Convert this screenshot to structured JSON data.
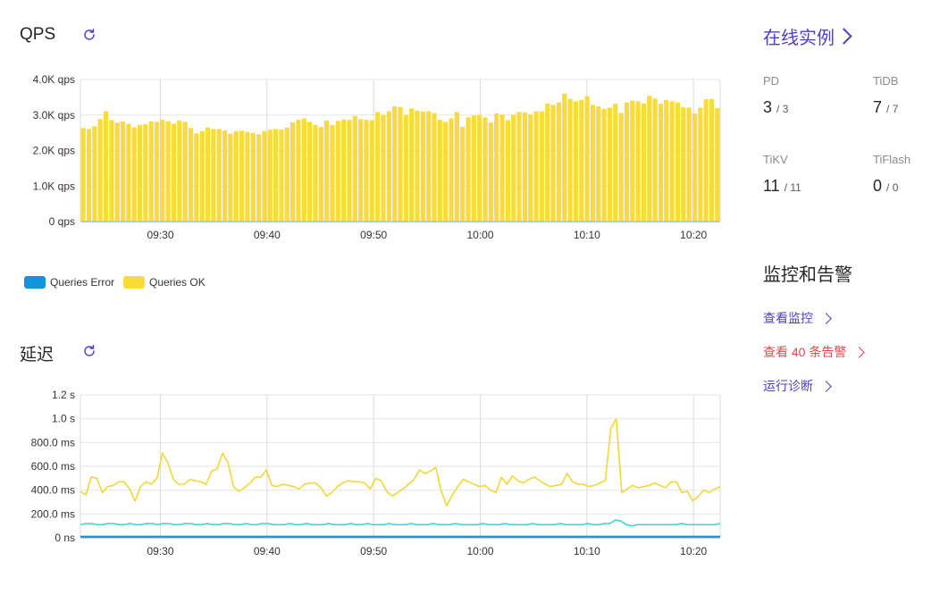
{
  "qps_panel": {
    "title": "QPS"
  },
  "latency_panel": {
    "title": "延迟"
  },
  "legend": [
    {
      "label": "Queries Error",
      "color": "#1296db"
    },
    {
      "label": "Queries OK",
      "color": "#fadb3c"
    }
  ],
  "instances": {
    "link_label": "在线实例",
    "items": [
      {
        "label": "PD",
        "up": "3",
        "total": "/ 3"
      },
      {
        "label": "TiDB",
        "up": "7",
        "total": "/ 7"
      },
      {
        "label": "TiKV",
        "up": "11",
        "total": "/ 11"
      },
      {
        "label": "TiFlash",
        "up": "0",
        "total": "/ 0"
      }
    ]
  },
  "monitoring": {
    "title": "监控和告警",
    "links": [
      {
        "label": "查看监控",
        "color": "#4f3fc8"
      },
      {
        "label": "查看 40 条告警",
        "color": "#e5484d"
      },
      {
        "label": "运行诊断",
        "color": "#4f3fc8"
      }
    ]
  },
  "chart_data": [
    {
      "type": "bar",
      "stacked": true,
      "y_ticks": [
        "0 qps",
        "1.0K qps",
        "2.0K qps",
        "3.0K qps",
        "4.0K qps"
      ],
      "ylim": [
        0,
        4000
      ],
      "x_ticks": [
        "09:30",
        "09:40",
        "09:50",
        "10:00",
        "10:10",
        "10:20"
      ],
      "x_range": [
        "09:22:30",
        "10:22:30"
      ],
      "grid": true,
      "series": [
        {
          "name": "Queries Error",
          "color": "#1296db",
          "values": [
            5,
            5,
            5,
            5,
            5,
            5,
            5,
            5,
            5,
            5,
            5,
            5,
            5,
            5,
            5,
            5,
            5,
            5,
            5,
            5,
            5,
            5,
            5,
            5,
            5,
            5,
            5,
            5,
            5,
            5,
            5,
            5,
            5,
            5,
            5,
            5,
            5,
            5,
            5,
            5,
            5,
            5,
            5,
            5,
            5,
            5,
            5,
            5,
            5,
            5,
            5,
            5,
            5,
            5,
            5,
            5,
            5,
            5,
            5,
            5,
            5,
            5,
            5,
            5,
            5,
            5,
            5,
            5,
            5,
            5,
            5,
            5,
            5,
            5,
            5,
            5,
            5,
            5,
            5,
            5,
            5,
            5,
            5,
            5,
            5,
            5,
            5,
            5,
            5,
            5,
            5,
            5,
            5,
            5,
            5,
            5,
            5,
            5,
            5,
            5,
            5,
            5,
            5,
            5,
            5,
            5,
            5,
            5,
            5,
            5,
            5,
            5,
            5,
            5,
            5,
            5,
            5,
            5,
            5,
            5,
            5,
            5
          ]
        },
        {
          "name": "Queries OK",
          "color": "#fadb3c",
          "values": [
            2630,
            2600,
            2680,
            2880,
            3100,
            2850,
            2780,
            2810,
            2750,
            2650,
            2720,
            2740,
            2810,
            2800,
            2870,
            2820,
            2750,
            2840,
            2800,
            2630,
            2480,
            2540,
            2640,
            2600,
            2600,
            2560,
            2470,
            2540,
            2550,
            2520,
            2490,
            2450,
            2540,
            2580,
            2600,
            2590,
            2640,
            2790,
            2860,
            2900,
            2800,
            2720,
            2660,
            2840,
            2710,
            2830,
            2870,
            2860,
            2970,
            2880,
            2860,
            2850,
            3080,
            3000,
            3100,
            3240,
            3220,
            3000,
            3180,
            3120,
            3090,
            3100,
            3050,
            2860,
            2800,
            2900,
            3080,
            2660,
            2930,
            2980,
            3000,
            2930,
            2780,
            3040,
            3010,
            2850,
            3000,
            3080,
            3070,
            3010,
            3100,
            3100,
            3320,
            3280,
            3350,
            3600,
            3450,
            3380,
            3420,
            3530,
            3280,
            3240,
            3170,
            3200,
            3310,
            3050,
            3350,
            3400,
            3380,
            3320,
            3540,
            3460,
            3310,
            3420,
            3380,
            3350,
            3210,
            3200,
            3040,
            3200,
            3440,
            3450,
            3190
          ]
        }
      ]
    },
    {
      "type": "line",
      "y_ticks": [
        "0 ns",
        "200.0 ms",
        "400.0 ms",
        "600.0 ms",
        "800.0 ms",
        "1.0 s",
        "1.2 s"
      ],
      "ylim": [
        0,
        1.2
      ],
      "x_ticks": [
        "09:30",
        "09:40",
        "09:50",
        "10:00",
        "10:10",
        "10:20"
      ],
      "x_range": [
        "09:22:30",
        "10:22:30"
      ],
      "grid": true,
      "series": [
        {
          "color": "#f0d73a",
          "values": [
            0.39,
            0.36,
            0.51,
            0.5,
            0.38,
            0.43,
            0.44,
            0.47,
            0.47,
            0.41,
            0.31,
            0.43,
            0.47,
            0.45,
            0.5,
            0.71,
            0.63,
            0.49,
            0.45,
            0.45,
            0.49,
            0.48,
            0.47,
            0.45,
            0.56,
            0.58,
            0.71,
            0.63,
            0.43,
            0.39,
            0.42,
            0.46,
            0.51,
            0.51,
            0.57,
            0.44,
            0.43,
            0.45,
            0.44,
            0.43,
            0.41,
            0.45,
            0.46,
            0.46,
            0.42,
            0.35,
            0.38,
            0.43,
            0.46,
            0.48,
            0.47,
            0.47,
            0.46,
            0.41,
            0.5,
            0.48,
            0.39,
            0.35,
            0.38,
            0.41,
            0.45,
            0.49,
            0.57,
            0.54,
            0.56,
            0.59,
            0.39,
            0.27,
            0.36,
            0.43,
            0.49,
            0.47,
            0.45,
            0.43,
            0.44,
            0.4,
            0.38,
            0.51,
            0.45,
            0.52,
            0.48,
            0.46,
            0.49,
            0.51,
            0.48,
            0.45,
            0.43,
            0.44,
            0.45,
            0.54,
            0.47,
            0.45,
            0.45,
            0.43,
            0.44,
            0.46,
            0.48,
            0.92,
            1.0,
            0.38,
            0.41,
            0.44,
            0.42,
            0.43,
            0.44,
            0.46,
            0.44,
            0.42,
            0.47,
            0.47,
            0.38,
            0.39,
            0.31,
            0.35,
            0.4,
            0.38,
            0.41,
            0.43
          ]
        },
        {
          "color": "#3dd6d0",
          "values": [
            0.11,
            0.12,
            0.12,
            0.11,
            0.11,
            0.12,
            0.12,
            0.11,
            0.11,
            0.12,
            0.11,
            0.11,
            0.12,
            0.12,
            0.11,
            0.12,
            0.12,
            0.11,
            0.11,
            0.12,
            0.12,
            0.11,
            0.11,
            0.12,
            0.11,
            0.11,
            0.12,
            0.12,
            0.11,
            0.11,
            0.12,
            0.11,
            0.11,
            0.12,
            0.12,
            0.11,
            0.11,
            0.11,
            0.12,
            0.11,
            0.11,
            0.12,
            0.11,
            0.11,
            0.11,
            0.12,
            0.11,
            0.11,
            0.11,
            0.12,
            0.11,
            0.11,
            0.12,
            0.11,
            0.11,
            0.11,
            0.12,
            0.11,
            0.11,
            0.11,
            0.12,
            0.11,
            0.11,
            0.11,
            0.12,
            0.11,
            0.11,
            0.11,
            0.12,
            0.11,
            0.11,
            0.11,
            0.11,
            0.12,
            0.11,
            0.11,
            0.11,
            0.12,
            0.11,
            0.11,
            0.11,
            0.11,
            0.12,
            0.11,
            0.11,
            0.11,
            0.11,
            0.12,
            0.11,
            0.11,
            0.11,
            0.11,
            0.12,
            0.11,
            0.11,
            0.12,
            0.12,
            0.15,
            0.14,
            0.11,
            0.1,
            0.11,
            0.11,
            0.11,
            0.11,
            0.11,
            0.11,
            0.11,
            0.11,
            0.12,
            0.11,
            0.11,
            0.11,
            0.11,
            0.11,
            0.11,
            0.12
          ]
        },
        {
          "color": "#1a8fd1",
          "values": [
            0.01,
            0.01,
            0.01,
            0.01,
            0.01,
            0.01,
            0.01,
            0.01,
            0.01,
            0.01,
            0.01,
            0.01,
            0.01,
            0.01,
            0.01,
            0.01,
            0.01,
            0.01,
            0.01,
            0.01,
            0.01,
            0.01,
            0.01,
            0.01,
            0.01,
            0.01,
            0.01,
            0.01,
            0.01,
            0.01,
            0.01,
            0.01,
            0.01,
            0.01,
            0.01,
            0.01,
            0.01,
            0.01,
            0.01,
            0.01,
            0.01,
            0.01,
            0.01,
            0.01,
            0.01,
            0.01,
            0.01,
            0.01,
            0.01,
            0.01,
            0.01,
            0.01,
            0.01,
            0.01,
            0.01,
            0.01,
            0.01,
            0.01,
            0.01,
            0.01,
            0.01,
            0.01,
            0.01,
            0.01,
            0.01,
            0.01,
            0.01,
            0.01,
            0.01,
            0.01,
            0.01,
            0.01,
            0.01,
            0.01,
            0.01,
            0.01,
            0.01,
            0.01,
            0.01,
            0.01,
            0.01,
            0.01,
            0.01,
            0.01,
            0.01,
            0.01,
            0.01,
            0.01,
            0.01,
            0.01,
            0.01,
            0.01,
            0.01,
            0.01,
            0.01,
            0.01,
            0.01,
            0.01,
            0.01,
            0.01,
            0.01,
            0.01,
            0.01,
            0.01,
            0.01,
            0.01,
            0.01,
            0.01,
            0.01,
            0.01,
            0.01,
            0.01,
            0.01,
            0.01,
            0.01,
            0.01
          ]
        }
      ]
    }
  ]
}
